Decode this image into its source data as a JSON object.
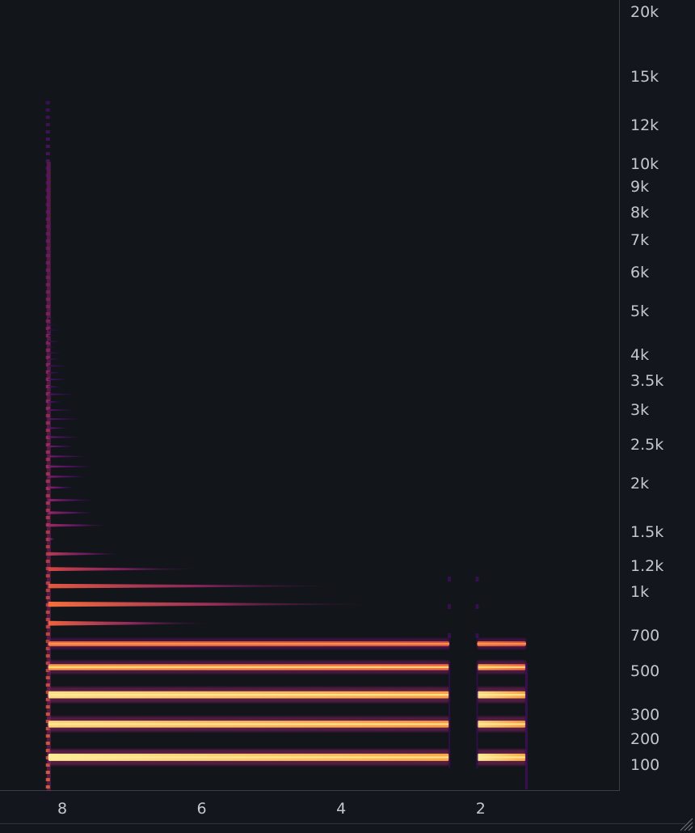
{
  "chart_data": {
    "type": "heatmap",
    "title": "",
    "xlabel": "",
    "ylabel": "",
    "x_axis": {
      "reversed": true,
      "ticks": [
        "8",
        "6",
        "4",
        "2"
      ],
      "tick_values": [
        8,
        6,
        4,
        2
      ],
      "range": [
        8.7,
        -0.3
      ]
    },
    "y_axis": {
      "scale": "mel-like",
      "ticks": [
        "20k",
        "15k",
        "12k",
        "10k",
        "9k",
        "8k",
        "7k",
        "6k",
        "5k",
        "4k",
        "3.5k",
        "3k",
        "2.5k",
        "2k",
        "1.5k",
        "1.2k",
        "1k",
        "700",
        "500",
        "300",
        "200",
        "100"
      ],
      "tick_values": [
        20000,
        15000,
        12000,
        10000,
        9000,
        8000,
        7000,
        6000,
        5000,
        4000,
        3500,
        3000,
        2500,
        2000,
        1500,
        1200,
        1000,
        700,
        500,
        300,
        200,
        100
      ]
    },
    "colormap": "inferno",
    "harmonics_hz": [
      130,
      262,
      392,
      523,
      654,
      785,
      916,
      1046,
      1177,
      1308,
      1439,
      1570,
      1700,
      1830,
      1960,
      2090,
      2220,
      2350,
      2480,
      2610,
      2740,
      2870,
      3000,
      3140,
      3270,
      3400,
      3530,
      3660,
      3790,
      3920,
      4050,
      4180,
      4310,
      4440,
      4570,
      4700,
      4830
    ],
    "harmonic_intensity": [
      1.0,
      0.95,
      0.97,
      0.82,
      0.68,
      0.66,
      0.7,
      0.62,
      0.55,
      0.48,
      0.42,
      0.4,
      0.38,
      0.35,
      0.33,
      0.3,
      0.3,
      0.28,
      0.27,
      0.25,
      0.24,
      0.22,
      0.21,
      0.2,
      0.19,
      0.18,
      0.17,
      0.16,
      0.15,
      0.14,
      0.13,
      0.12,
      0.12,
      0.11,
      0.1,
      0.1,
      0.09
    ],
    "harmonic_decay_end_s": [
      1.3,
      1.3,
      1.3,
      1.3,
      1.3,
      5.8,
      3.4,
      3.9,
      6.0,
      7.1,
      8.1,
      7.3,
      7.5,
      7.5,
      7.8,
      7.6,
      7.5,
      7.6,
      7.8,
      7.7,
      7.9,
      7.7,
      7.8,
      8.0,
      7.8,
      8.0,
      7.9,
      8.0,
      7.9,
      8.0,
      8.0,
      8.1,
      8.0,
      8.1,
      8.0,
      8.1,
      8.1
    ],
    "sustain_segments_s": [
      [
        8.2,
        2.45
      ],
      [
        2.05,
        1.35
      ]
    ],
    "onset_s": 8.2,
    "end_s": 1.35
  }
}
